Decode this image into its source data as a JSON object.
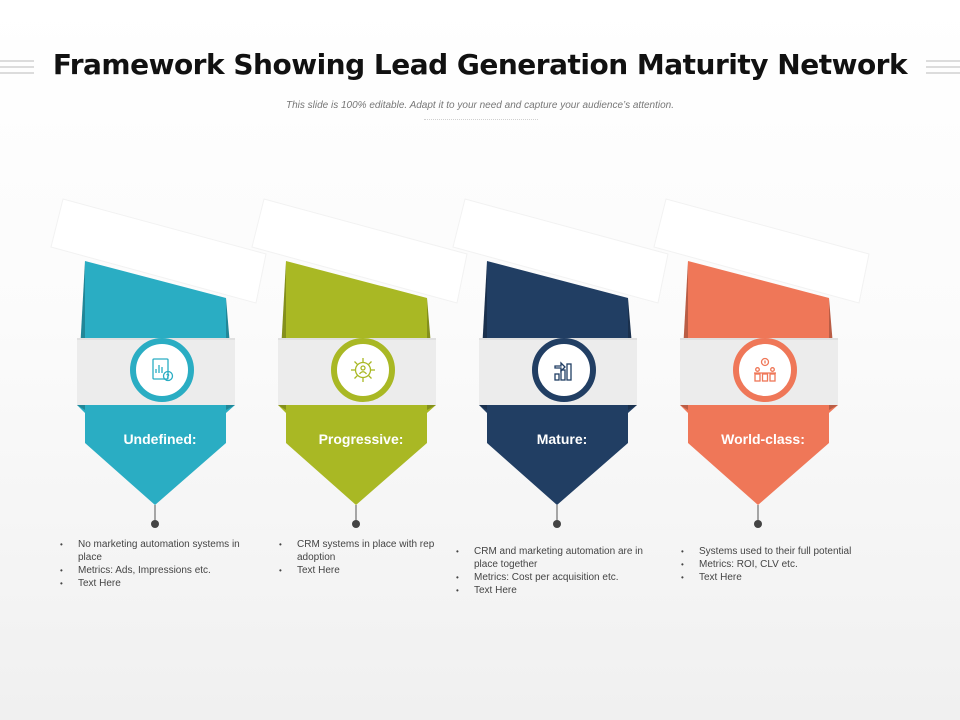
{
  "title": "Framework Showing Lead Generation Maturity Network",
  "subtitle": "This slide is 100% editable. Adapt it to your need and capture your audience’s attention.",
  "stages": [
    {
      "label": "Undefined:",
      "color": "#2aadc3",
      "icon": "report-icon",
      "bullets": [
        "No marketing automation systems in place",
        "Metrics: Ads, Impressions etc.",
        "Text Here"
      ]
    },
    {
      "label": "Progressive:",
      "color": "#a9b824",
      "icon": "gear-person-icon",
      "bullets": [
        "CRM systems in place with rep adoption",
        "Text Here"
      ]
    },
    {
      "label": "Mature:",
      "color": "#213e63",
      "icon": "growth-chart-icon",
      "bullets": [
        "CRM and marketing automation are in place together",
        "Metrics: Cost per acquisition etc.",
        "Text Here"
      ]
    },
    {
      "label": "World-class:",
      "color": "#ef7758",
      "icon": "team-idea-icon",
      "bullets": [
        "Systems used to their full potential",
        "Metrics: ROI, CLV etc.",
        "Text Here"
      ]
    }
  ]
}
